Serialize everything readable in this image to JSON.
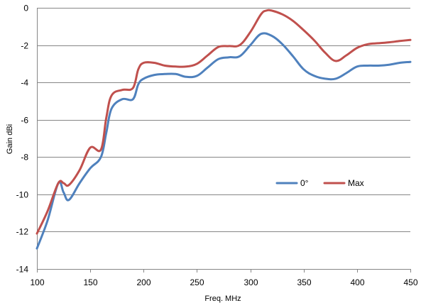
{
  "chart_data": {
    "type": "line",
    "title": "",
    "xlabel": "Freq. MHz",
    "ylabel": "Gain dBi",
    "xlim": [
      100,
      450
    ],
    "ylim": [
      -14,
      0
    ],
    "x_ticks": [
      100,
      150,
      200,
      250,
      300,
      350,
      400,
      450
    ],
    "y_ticks": [
      0,
      -2,
      -4,
      -6,
      -8,
      -10,
      -12,
      -14
    ],
    "grid": "horizontal",
    "legend_position": "right-center",
    "series": [
      {
        "name": "0°",
        "color": "#4F81BD",
        "x": [
          100,
          110,
          120,
          125,
          130,
          140,
          150,
          160,
          165,
          170,
          180,
          190,
          195,
          200,
          210,
          220,
          230,
          240,
          250,
          260,
          270,
          280,
          290,
          300,
          310,
          320,
          330,
          340,
          350,
          360,
          370,
          380,
          390,
          400,
          410,
          420,
          430,
          440,
          450
        ],
        "values": [
          -12.9,
          -11.4,
          -9.4,
          -9.9,
          -10.3,
          -9.4,
          -8.6,
          -8.0,
          -6.7,
          -5.4,
          -4.9,
          -4.9,
          -4.1,
          -3.8,
          -3.6,
          -3.55,
          -3.55,
          -3.7,
          -3.65,
          -3.2,
          -2.75,
          -2.65,
          -2.6,
          -2.0,
          -1.4,
          -1.5,
          -1.95,
          -2.6,
          -3.3,
          -3.65,
          -3.8,
          -3.8,
          -3.5,
          -3.15,
          -3.1,
          -3.1,
          -3.05,
          -2.95,
          -2.9
        ]
      },
      {
        "name": "Max",
        "color": "#C0504D",
        "x": [
          100,
          110,
          120,
          125,
          130,
          140,
          150,
          160,
          165,
          170,
          180,
          190,
          195,
          200,
          210,
          220,
          230,
          240,
          250,
          260,
          270,
          280,
          290,
          300,
          310,
          315,
          320,
          330,
          340,
          350,
          360,
          370,
          380,
          390,
          400,
          410,
          420,
          430,
          440,
          450
        ],
        "values": [
          -12.1,
          -10.9,
          -9.4,
          -9.4,
          -9.5,
          -8.7,
          -7.5,
          -7.6,
          -5.9,
          -4.7,
          -4.4,
          -4.3,
          -3.3,
          -2.95,
          -2.95,
          -3.1,
          -3.15,
          -3.15,
          -3.0,
          -2.55,
          -2.1,
          -2.05,
          -2.0,
          -1.3,
          -0.35,
          -0.15,
          -0.15,
          -0.35,
          -0.7,
          -1.2,
          -1.75,
          -2.4,
          -2.85,
          -2.55,
          -2.15,
          -1.95,
          -1.9,
          -1.85,
          -1.78,
          -1.72
        ]
      }
    ]
  }
}
